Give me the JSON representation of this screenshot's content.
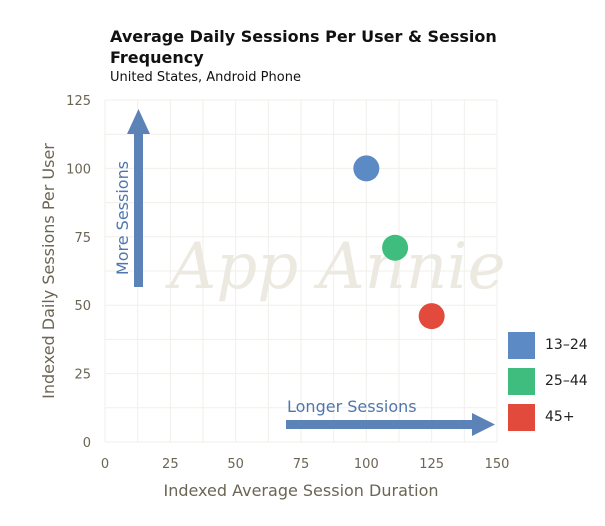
{
  "header": {
    "title": "Average Daily Sessions Per User & Session Frequency",
    "subtitle": "United States, Android Phone"
  },
  "watermark": "App Annie",
  "annotations": {
    "y_arrow": "More Sessions",
    "x_arrow": "Longer Sessions"
  },
  "colors": {
    "13–24": "#5b8ac4",
    "25–44": "#3ebd7f",
    "45+": "#e24a3b",
    "arrow": "#5b83b8"
  },
  "chart_data": {
    "type": "scatter",
    "title": "Average Daily Sessions Per User & Session Frequency",
    "subtitle": "United States, Android Phone",
    "xlabel": "Indexed Average Session Duration",
    "ylabel": "Indexed Daily Sessions Per User",
    "xlim": [
      0,
      150
    ],
    "ylim": [
      0,
      125
    ],
    "xticks": [
      0,
      25,
      50,
      75,
      100,
      125,
      150
    ],
    "yticks": [
      0,
      25,
      50,
      75,
      100,
      125
    ],
    "grid": true,
    "legend_position": "right",
    "series": [
      {
        "name": "13–24",
        "color": "#5b8ac4",
        "x": [
          100
        ],
        "y": [
          100
        ]
      },
      {
        "name": "25–44",
        "color": "#3ebd7f",
        "x": [
          111
        ],
        "y": [
          71
        ]
      },
      {
        "name": "45+",
        "color": "#e24a3b",
        "x": [
          125
        ],
        "y": [
          46
        ]
      }
    ]
  }
}
